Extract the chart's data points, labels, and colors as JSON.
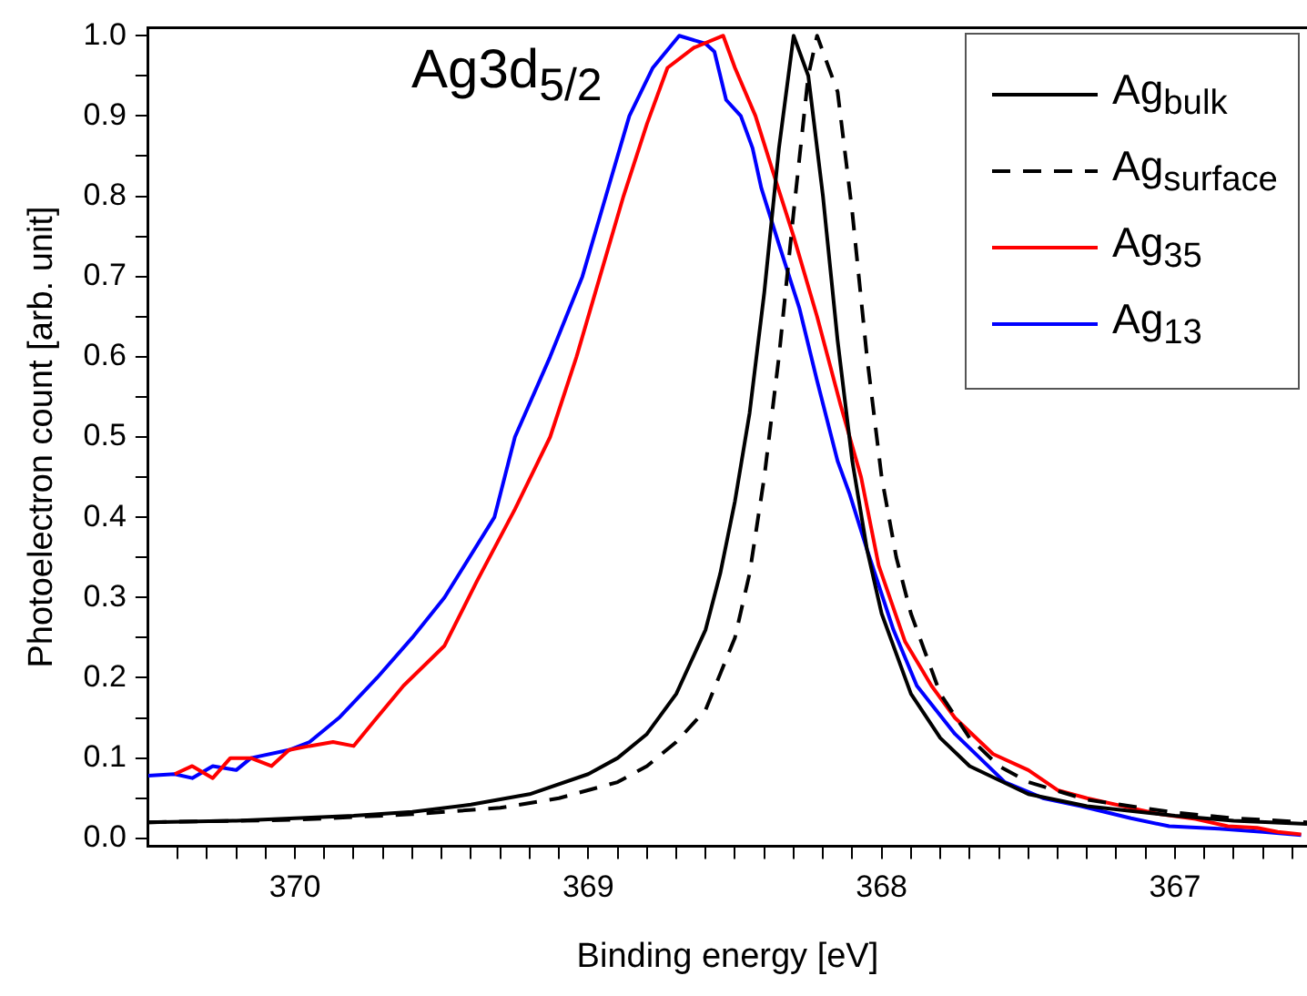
{
  "chart_data": {
    "type": "line",
    "xlabel": "Binding energy [eV]",
    "ylabel": "Photoelectron count [arb. unit]",
    "annotations": [
      "Ag3d$_{5/2}$"
    ],
    "xlim": [
      370.5,
      366.55
    ],
    "xticks": [
      370,
      369,
      368,
      367,
      {
        "value": 370.4,
        "label": null
      },
      {
        "value": 370.3,
        "label": null
      },
      {
        "value": 370.2,
        "label": null
      },
      {
        "value": 370.1,
        "label": null
      },
      {
        "value": 369.9,
        "label": null
      },
      {
        "value": 369.8,
        "label": null
      },
      {
        "value": 369.7,
        "label": null
      },
      {
        "value": 369.6,
        "label": null
      },
      {
        "value": 369.5,
        "label": null
      },
      {
        "value": 369.4,
        "label": null
      },
      {
        "value": 369.3,
        "label": null
      },
      {
        "value": 369.2,
        "label": null
      },
      {
        "value": 369.1,
        "label": null
      },
      {
        "value": 368.9,
        "label": null
      },
      {
        "value": 368.8,
        "label": null
      },
      {
        "value": 368.7,
        "label": null
      },
      {
        "value": 368.6,
        "label": null
      },
      {
        "value": 368.5,
        "label": null
      },
      {
        "value": 368.4,
        "label": null
      },
      {
        "value": 368.3,
        "label": null
      },
      {
        "value": 368.2,
        "label": null
      },
      {
        "value": 368.1,
        "label": null
      },
      {
        "value": 367.9,
        "label": null
      },
      {
        "value": 367.8,
        "label": null
      },
      {
        "value": 367.7,
        "label": null
      },
      {
        "value": 367.6,
        "label": null
      },
      {
        "value": 367.5,
        "label": null
      },
      {
        "value": 367.4,
        "label": null
      },
      {
        "value": 367.3,
        "label": null
      },
      {
        "value": 367.2,
        "label": null
      },
      {
        "value": 367.1,
        "label": null
      },
      {
        "value": 366.9,
        "label": null
      },
      {
        "value": 366.8,
        "label": null
      },
      {
        "value": 366.7,
        "label": null
      },
      {
        "value": 366.6,
        "label": null
      }
    ],
    "ylim": [
      -0.01,
      1.01
    ],
    "yticks": [
      {
        "value": 0,
        "label": "0.0"
      },
      {
        "value": 0.1,
        "label": "0.1"
      },
      {
        "value": 0.2,
        "label": "0.2"
      },
      {
        "value": 0.3,
        "label": "0.3"
      },
      {
        "value": 0.4,
        "label": "0.4"
      },
      {
        "value": 0.5,
        "label": "0.5"
      },
      {
        "value": 0.6,
        "label": "0.6"
      },
      {
        "value": 0.7,
        "label": "0.7"
      },
      {
        "value": 0.8,
        "label": "0.8"
      },
      {
        "value": 0.9,
        "label": "0.9"
      },
      {
        "value": 1,
        "label": "1.0"
      },
      {
        "value": 0.05,
        "label": null
      },
      {
        "value": 0.15,
        "label": null
      },
      {
        "value": 0.25,
        "label": null
      },
      {
        "value": 0.35,
        "label": null
      },
      {
        "value": 0.45,
        "label": null
      },
      {
        "value": 0.55,
        "label": null
      },
      {
        "value": 0.65,
        "label": null
      },
      {
        "value": 0.75,
        "label": null
      },
      {
        "value": 0.85,
        "label": null
      },
      {
        "value": 0.95,
        "label": null
      }
    ],
    "legend": "top right",
    "marker": "none",
    "series": [
      {
        "name": "Ag$_{bulk}$",
        "color": "#000000",
        "line_style": "solid",
        "x": [
          370.5,
          370.2,
          370.0,
          369.8,
          369.6,
          369.4,
          369.2,
          369.0,
          368.9,
          368.8,
          368.7,
          368.6,
          368.55,
          368.5,
          368.45,
          368.4,
          368.35,
          368.3,
          368.25,
          368.2,
          368.15,
          368.1,
          368.05,
          368.0,
          367.9,
          367.8,
          367.7,
          367.5,
          367.3,
          367.0,
          366.8,
          366.55
        ],
        "values": [
          0.02,
          0.022,
          0.025,
          0.028,
          0.033,
          0.042,
          0.055,
          0.08,
          0.1,
          0.13,
          0.18,
          0.26,
          0.33,
          0.42,
          0.53,
          0.68,
          0.86,
          1.0,
          0.95,
          0.8,
          0.62,
          0.47,
          0.36,
          0.28,
          0.18,
          0.125,
          0.09,
          0.055,
          0.04,
          0.028,
          0.022,
          0.018
        ]
      },
      {
        "name": "Ag$_{surface}$",
        "color": "#000000",
        "line_style": "dashed",
        "x": [
          370.5,
          370.0,
          369.6,
          369.3,
          369.1,
          368.9,
          368.8,
          368.7,
          368.6,
          368.5,
          368.45,
          368.4,
          368.35,
          368.3,
          368.25,
          368.22,
          368.15,
          368.1,
          368.05,
          368.0,
          367.95,
          367.9,
          367.8,
          367.7,
          367.6,
          367.5,
          367.3,
          367.0,
          366.8,
          366.55
        ],
        "values": [
          0.02,
          0.023,
          0.03,
          0.038,
          0.05,
          0.07,
          0.09,
          0.12,
          0.16,
          0.25,
          0.33,
          0.45,
          0.6,
          0.78,
          0.95,
          1.0,
          0.93,
          0.78,
          0.6,
          0.45,
          0.35,
          0.28,
          0.18,
          0.125,
          0.09,
          0.07,
          0.048,
          0.032,
          0.025,
          0.02
        ]
      },
      {
        "name": "Ag$_{35}$",
        "color": "#ff0000",
        "line_style": "solid",
        "x": [
          370.41,
          370.35,
          370.28,
          370.22,
          370.15,
          370.08,
          370.02,
          369.95,
          369.87,
          369.8,
          369.73,
          369.63,
          369.49,
          369.38,
          369.25,
          369.13,
          369.04,
          368.96,
          368.88,
          368.8,
          368.73,
          368.64,
          368.54,
          368.5,
          368.43,
          368.37,
          368.3,
          368.22,
          368.14,
          368.07,
          368.01,
          367.92,
          367.83,
          367.75,
          367.62,
          367.5,
          367.4,
          367.3,
          367.14,
          367.05,
          366.93,
          366.82,
          366.72,
          366.65,
          366.57
        ],
        "values": [
          0.08,
          0.09,
          0.075,
          0.1,
          0.1,
          0.09,
          0.11,
          0.115,
          0.12,
          0.115,
          0.146,
          0.19,
          0.24,
          0.32,
          0.41,
          0.5,
          0.6,
          0.7,
          0.8,
          0.89,
          0.96,
          0.985,
          1.0,
          0.96,
          0.9,
          0.83,
          0.75,
          0.65,
          0.54,
          0.45,
          0.34,
          0.245,
          0.19,
          0.15,
          0.105,
          0.085,
          0.06,
          0.05,
          0.037,
          0.03,
          0.024,
          0.015,
          0.013,
          0.008,
          0.005
        ]
      },
      {
        "name": "Ag$_{13}$",
        "color": "#0000ff",
        "line_style": "solid",
        "x": [
          370.5,
          370.41,
          370.35,
          370.28,
          370.2,
          370.15,
          370.02,
          369.95,
          369.85,
          369.72,
          369.6,
          369.49,
          369.32,
          369.25,
          369.13,
          369.02,
          368.94,
          368.86,
          368.78,
          368.69,
          368.6,
          368.57,
          368.53,
          368.48,
          368.44,
          368.41,
          368.35,
          368.28,
          368.22,
          368.15,
          368.11,
          368.05,
          367.96,
          367.88,
          367.75,
          367.58,
          367.45,
          367.32,
          367.15,
          367.02,
          366.85,
          366.7,
          366.57
        ],
        "values": [
          0.078,
          0.08,
          0.075,
          0.09,
          0.085,
          0.1,
          0.11,
          0.12,
          0.15,
          0.2,
          0.25,
          0.3,
          0.4,
          0.5,
          0.6,
          0.7,
          0.8,
          0.9,
          0.96,
          1.0,
          0.99,
          0.98,
          0.92,
          0.9,
          0.86,
          0.81,
          0.74,
          0.66,
          0.57,
          0.47,
          0.43,
          0.36,
          0.26,
          0.19,
          0.13,
          0.07,
          0.05,
          0.04,
          0.025,
          0.015,
          0.012,
          0.008,
          0.004
        ]
      }
    ]
  }
}
